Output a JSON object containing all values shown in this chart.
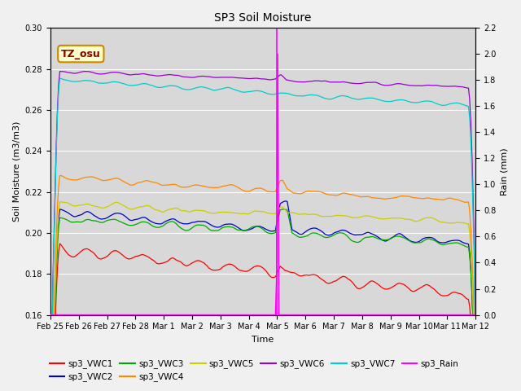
{
  "title": "SP3 Soil Moisture",
  "ylabel_left": "Soil Moisture (m3/m3)",
  "ylabel_right": "Rain (mm)",
  "xlabel": "Time",
  "ylim_left": [
    0.16,
    0.3
  ],
  "ylim_right": [
    0.0,
    2.2
  ],
  "yticks_left": [
    0.16,
    0.18,
    0.2,
    0.22,
    0.24,
    0.26,
    0.28,
    0.3
  ],
  "yticks_right": [
    0.0,
    0.2,
    0.4,
    0.6,
    0.8,
    1.0,
    1.2,
    1.4,
    1.6,
    1.8,
    2.0,
    2.2
  ],
  "n_days": 15,
  "n_points": 360,
  "rain_day": 8.0,
  "annotation_label": "TZ_osu",
  "colors": {
    "sp3_VWC1": "#ff0000",
    "sp3_VWC2": "#0000cc",
    "sp3_VWC3": "#00aa00",
    "sp3_VWC4": "#ff8800",
    "sp3_VWC5": "#cccc00",
    "sp3_VWC6": "#9900cc",
    "sp3_VWC7": "#00cccc",
    "sp3_Rain": "#ff00ff"
  },
  "plot_bg": "#d8d8d8",
  "fig_bg": "#f0f0f0",
  "date_labels": [
    "Feb 25",
    "Feb 26",
    "Feb 27",
    "Feb 28",
    "Mar 1",
    "Mar 2",
    "Mar 3",
    "Mar 4",
    "Mar 5",
    "Mar 6",
    "Mar 7",
    "Mar 8",
    "Mar 9",
    "Mar 10",
    "Mar 11",
    "Mar 12"
  ],
  "legend_row1": [
    "sp3_VWC1",
    "sp3_VWC2",
    "sp3_VWC3",
    "sp3_VWC4",
    "sp3_VWC5",
    "sp3_VWC6"
  ],
  "legend_row2": [
    "sp3_VWC7",
    "sp3_Rain"
  ]
}
